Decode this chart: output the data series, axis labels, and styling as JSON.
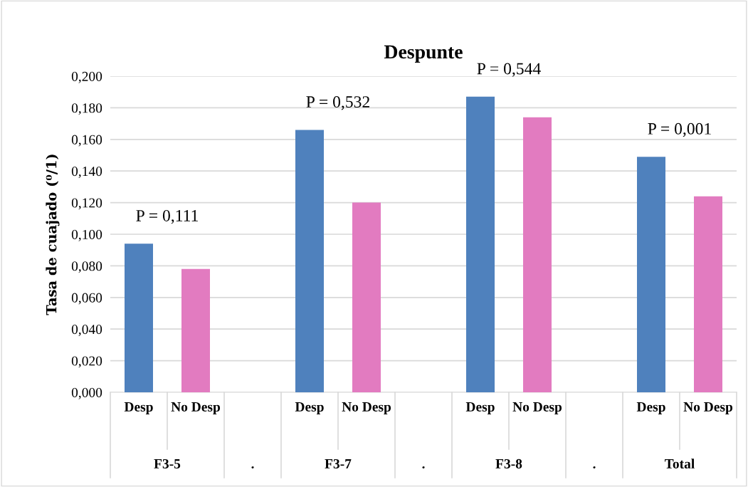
{
  "chart_data": {
    "type": "bar",
    "title": "Despunte",
    "ylabel": "Tasa de cuajado (⁰/1)",
    "categories": [
      "Desp",
      "No Desp",
      null,
      "Desp",
      "No Desp",
      null,
      "Desp",
      "No Desp",
      null,
      "Desp",
      "No Desp"
    ],
    "values": [
      0.094,
      0.078,
      null,
      0.166,
      0.12,
      null,
      0.187,
      0.174,
      null,
      0.149,
      0.124
    ],
    "colors": [
      "#4f81bd",
      "#e27bc0",
      null,
      "#4f81bd",
      "#e27bc0",
      null,
      "#4f81bd",
      "#e27bc0",
      null,
      "#4f81bd",
      "#e27bc0"
    ],
    "ylim": [
      0,
      0.2
    ],
    "yticks": [
      {
        "value": 0,
        "label": "0,000"
      },
      {
        "value": 0.02,
        "label": "0,020"
      },
      {
        "value": 0.04,
        "label": "0,040"
      },
      {
        "value": 0.06,
        "label": "0,060"
      },
      {
        "value": 0.08,
        "label": "0,080"
      },
      {
        "value": 0.1,
        "label": "0,100"
      },
      {
        "value": 0.12,
        "label": "0,120"
      },
      {
        "value": 0.14,
        "label": "0,140"
      },
      {
        "value": 0.16,
        "label": "0,160"
      },
      {
        "value": 0.18,
        "label": "0,180"
      },
      {
        "value": 0.2,
        "label": "0,200"
      }
    ],
    "grid": "y",
    "annotations": [
      "P = 0,111",
      "P = 0,532",
      "P = 0,544",
      "P = 0,001",
      "F3-5",
      ".",
      "F3-7",
      ".",
      "F3-8",
      ".",
      "Total"
    ]
  }
}
